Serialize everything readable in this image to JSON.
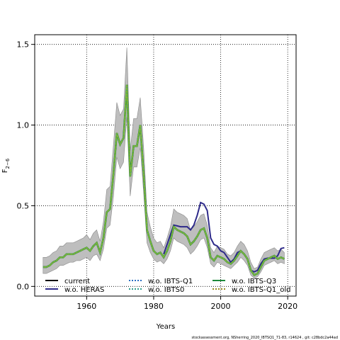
{
  "chart_data": {
    "type": "line",
    "xlabel": "Years",
    "ylabel": "F",
    "ylabel_sub": "2−6",
    "xlim": [
      1944.5,
      2022.5
    ],
    "ylim": [
      -0.06,
      1.56
    ],
    "xticks": [
      1960,
      1980,
      2000,
      2020
    ],
    "yticks": [
      0.0,
      0.5,
      1.0,
      1.5
    ],
    "ytick_labels": [
      "0.0",
      "0.5",
      "1.0",
      "1.5"
    ],
    "grid": true,
    "legend_position": "bottom",
    "footer": "stockassessment.org, NSherring_2020_IBTSQ1_71-83, r14624 , git: c28bdc2a44ad",
    "x": [
      1947,
      1948,
      1949,
      1950,
      1951,
      1952,
      1953,
      1954,
      1955,
      1956,
      1957,
      1958,
      1959,
      1960,
      1961,
      1962,
      1963,
      1964,
      1965,
      1966,
      1967,
      1968,
      1969,
      1970,
      1971,
      1972,
      1973,
      1974,
      1975,
      1976,
      1977,
      1978,
      1979,
      1980,
      1981,
      1982,
      1983,
      1984,
      1985,
      1986,
      1987,
      1988,
      1989,
      1990,
      1991,
      1992,
      1993,
      1994,
      1995,
      1996,
      1997,
      1998,
      1999,
      2000,
      2001,
      2002,
      2003,
      2004,
      2005,
      2006,
      2007,
      2008,
      2009,
      2010,
      2011,
      2012,
      2013,
      2014,
      2015,
      2016,
      2017,
      2018,
      2019
    ],
    "current": [
      0.12,
      0.12,
      0.13,
      0.15,
      0.16,
      0.18,
      0.18,
      0.2,
      0.2,
      0.2,
      0.21,
      0.22,
      0.23,
      0.24,
      0.22,
      0.25,
      0.27,
      0.21,
      0.3,
      0.46,
      0.48,
      0.7,
      0.95,
      0.88,
      0.92,
      1.25,
      0.68,
      0.87,
      0.87,
      1.0,
      0.7,
      0.35,
      0.28,
      0.22,
      0.2,
      0.21,
      0.18,
      0.22,
      0.28,
      0.37,
      0.35,
      0.34,
      0.33,
      0.31,
      0.26,
      0.28,
      0.31,
      0.35,
      0.36,
      0.3,
      0.18,
      0.16,
      0.19,
      0.18,
      0.17,
      0.15,
      0.14,
      0.16,
      0.19,
      0.22,
      0.2,
      0.17,
      0.1,
      0.07,
      0.08,
      0.12,
      0.16,
      0.17,
      0.18,
      0.19,
      0.17,
      0.18,
      0.17
    ],
    "lower": [
      0.08,
      0.08,
      0.09,
      0.1,
      0.11,
      0.13,
      0.13,
      0.14,
      0.15,
      0.15,
      0.16,
      0.16,
      0.17,
      0.18,
      0.16,
      0.19,
      0.2,
      0.16,
      0.23,
      0.36,
      0.38,
      0.56,
      0.8,
      0.73,
      0.77,
      1.05,
      0.56,
      0.74,
      0.74,
      0.86,
      0.58,
      0.27,
      0.21,
      0.17,
      0.15,
      0.16,
      0.14,
      0.17,
      0.22,
      0.3,
      0.28,
      0.27,
      0.26,
      0.24,
      0.2,
      0.22,
      0.25,
      0.29,
      0.3,
      0.24,
      0.14,
      0.12,
      0.15,
      0.14,
      0.13,
      0.12,
      0.11,
      0.13,
      0.15,
      0.18,
      0.16,
      0.13,
      0.07,
      0.05,
      0.06,
      0.09,
      0.13,
      0.14,
      0.15,
      0.16,
      0.14,
      0.15,
      0.14
    ],
    "upper": [
      0.18,
      0.18,
      0.19,
      0.21,
      0.22,
      0.25,
      0.25,
      0.27,
      0.27,
      0.27,
      0.28,
      0.29,
      0.3,
      0.32,
      0.29,
      0.33,
      0.35,
      0.28,
      0.4,
      0.6,
      0.62,
      0.88,
      1.14,
      1.06,
      1.1,
      1.48,
      0.84,
      1.04,
      1.04,
      1.17,
      0.86,
      0.46,
      0.37,
      0.3,
      0.27,
      0.28,
      0.24,
      0.3,
      0.37,
      0.48,
      0.46,
      0.45,
      0.44,
      0.42,
      0.35,
      0.37,
      0.4,
      0.44,
      0.45,
      0.38,
      0.24,
      0.21,
      0.25,
      0.24,
      0.23,
      0.2,
      0.19,
      0.21,
      0.25,
      0.28,
      0.26,
      0.22,
      0.15,
      0.11,
      0.12,
      0.17,
      0.21,
      0.22,
      0.23,
      0.24,
      0.22,
      0.23,
      0.21
    ],
    "heras": {
      "x": [
        1983,
        1984,
        1985,
        1986,
        1987,
        1988,
        1989,
        1990,
        1991,
        1992,
        1993,
        1994,
        1995,
        1996,
        1997,
        1998,
        1999,
        2000,
        2001,
        2002,
        2003,
        2004,
        2005,
        2006,
        2007,
        2008,
        2009,
        2010,
        2011,
        2012,
        2013,
        2014,
        2015,
        2016,
        2017,
        2018,
        2019
      ],
      "y": [
        0.2,
        0.26,
        0.32,
        0.38,
        0.375,
        0.37,
        0.37,
        0.37,
        0.35,
        0.38,
        0.44,
        0.52,
        0.51,
        0.47,
        0.3,
        0.26,
        0.25,
        0.22,
        0.21,
        0.18,
        0.15,
        0.17,
        0.21,
        0.22,
        0.2,
        0.17,
        0.1,
        0.09,
        0.1,
        0.14,
        0.17,
        0.175,
        0.175,
        0.175,
        0.19,
        0.235,
        0.24
      ]
    },
    "series": [
      {
        "name": "current",
        "color": "#000000",
        "dash": "solid"
      },
      {
        "name": "w.o. HERAS",
        "color": "#2e2a8a",
        "dash": "solid"
      },
      {
        "name": "w.o. IBTS-Q1",
        "color": "#2b6fc4",
        "dash": "dotted"
      },
      {
        "name": "w.o. IBTS0",
        "color": "#2e9c8c",
        "dash": "dotted"
      },
      {
        "name": "w.o. IBTS-Q3",
        "color": "#1e8a3a",
        "dash": "solid"
      },
      {
        "name": "w.o. IBTS-Q1_old",
        "color": "#9a8a1e",
        "dash": "dotted"
      }
    ],
    "overlay_color": "#86b834",
    "band_color": "#bebebe"
  }
}
